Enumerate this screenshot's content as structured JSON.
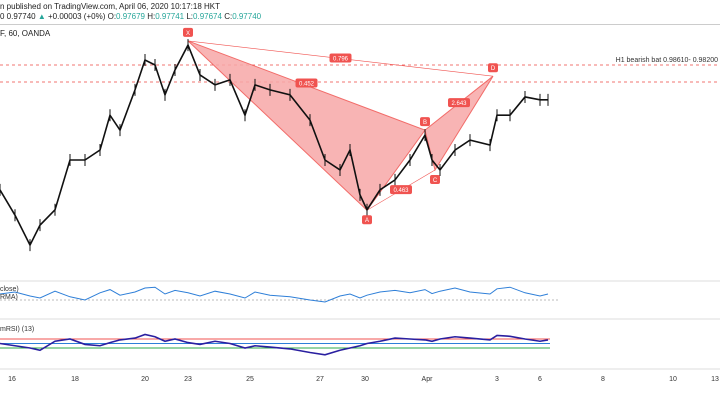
{
  "header": {
    "published": "n published on TradingView.com, April 06, 2020 10:17:18 HKT",
    "price": "0 0.97740",
    "arrow": "▲",
    "change": "+0.00003 (+0%)",
    "o_label": "O:",
    "o": "0.97679",
    "h_label": "H:",
    "h": "0.97741",
    "l_label": "L:",
    "l": "0.97674",
    "c_label": "C:",
    "c": "0.97740",
    "symbol": "F, 60, OANDA"
  },
  "colors": {
    "pattern": "#f05350",
    "fill": "#f7a8a8",
    "osc1": "#2e7fd8",
    "osc2": "#2a1fa0",
    "up": "#26a69a"
  },
  "chart_data": {
    "type": "line",
    "title": "F, 60, OANDA",
    "ylim": [
      0.94,
      0.995
    ],
    "zone_label": "H1 bearish bat 0.98610- 0.98200",
    "zone": [
      0.9861,
      0.982
    ],
    "x": [
      0,
      15,
      30,
      40,
      55,
      70,
      85,
      100,
      110,
      120,
      135,
      145,
      155,
      165,
      175,
      188,
      200,
      215,
      230,
      245,
      255,
      270,
      290,
      310,
      325,
      340,
      350,
      360,
      367,
      380,
      395,
      410,
      425,
      432,
      440,
      455,
      470,
      490,
      497,
      510,
      525,
      540,
      548
    ],
    "close": [
      0.956,
      0.9499,
      0.9427,
      0.9475,
      0.9512,
      0.9632,
      0.9632,
      0.9656,
      0.974,
      0.9704,
      0.9801,
      0.9873,
      0.9861,
      0.9789,
      0.9849,
      0.9909,
      0.9837,
      0.9813,
      0.9825,
      0.974,
      0.9813,
      0.9801,
      0.9789,
      0.9728,
      0.9632,
      0.9608,
      0.9656,
      0.9548,
      0.9512,
      0.956,
      0.9584,
      0.9632,
      0.9692,
      0.9632,
      0.9608,
      0.9656,
      0.968,
      0.9668,
      0.974,
      0.974,
      0.9784,
      0.9777,
      0.9777
    ],
    "pattern": [
      {
        "name": "X",
        "x": 188,
        "y": 0.9919
      },
      {
        "name": "A",
        "x": 367,
        "y": 0.9511
      },
      {
        "name": "B",
        "x": 425,
        "y": 0.9704
      },
      {
        "name": "C",
        "x": 435,
        "y": 0.9608
      },
      {
        "name": "D",
        "x": 493,
        "y": 0.9834
      }
    ],
    "ratios": [
      {
        "text": "0.796"
      },
      {
        "text": "0.452"
      },
      {
        "text": "2.643"
      },
      {
        "text": "0.463"
      }
    ],
    "xticks": [
      "16",
      "18",
      "20",
      "23",
      "25",
      "27",
      "30",
      "Apr",
      "3",
      "6",
      "8",
      "10",
      "13"
    ],
    "osc1_label": "close)",
    "osc1_sub": "RMA)",
    "osc2_label": "mRSI) (13)",
    "osc1": [
      55,
      60,
      50,
      45,
      62,
      48,
      40,
      58,
      66,
      52,
      60,
      70,
      72,
      55,
      64,
      58,
      50,
      62,
      55,
      45,
      60,
      52,
      48,
      40,
      35,
      50,
      55,
      45,
      52,
      60,
      64,
      58,
      66,
      56,
      62,
      70,
      60,
      55,
      68,
      72,
      58,
      50,
      55
    ],
    "osc2": [
      50,
      45,
      40,
      35,
      55,
      60,
      48,
      45,
      52,
      58,
      62,
      70,
      65,
      55,
      60,
      52,
      48,
      55,
      50,
      40,
      45,
      42,
      38,
      30,
      25,
      35,
      40,
      45,
      50,
      55,
      62,
      60,
      58,
      55,
      60,
      65,
      62,
      58,
      68,
      66,
      60,
      55,
      58
    ]
  }
}
